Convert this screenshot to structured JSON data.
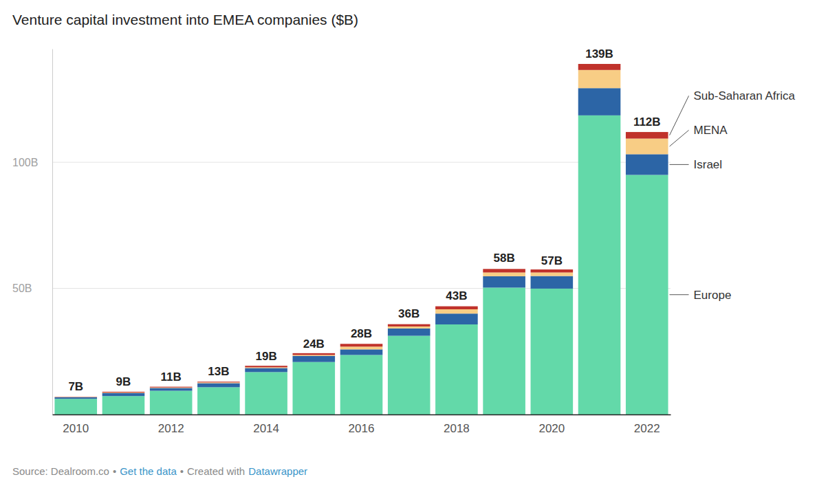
{
  "chart_data": {
    "type": "bar",
    "title": "Venture capital investment into EMEA companies ($B)",
    "categories": [
      "2010",
      null,
      "2012",
      null,
      "2014",
      null,
      "2016",
      null,
      "2018",
      null,
      "2020",
      null,
      "2022"
    ],
    "series": [
      {
        "name": "Europe",
        "color": "#63d9a9",
        "values": [
          6.2,
          7.3,
          9.4,
          10.8,
          16.8,
          20.8,
          23.6,
          31.2,
          35.7,
          50.3,
          49.9,
          118.6,
          95.0
        ]
      },
      {
        "name": "Israel",
        "color": "#2c65a6",
        "values": [
          0.6,
          1.2,
          1.1,
          1.6,
          1.6,
          2.4,
          2.2,
          2.9,
          4.3,
          4.5,
          5.0,
          10.8,
          8.2
        ]
      },
      {
        "name": "MENA",
        "color": "#f8cd85",
        "values": [
          0.1,
          0.2,
          0.2,
          0.3,
          0.3,
          0.4,
          1.1,
          0.8,
          1.7,
          1.5,
          1.4,
          7.2,
          6.2
        ]
      },
      {
        "name": "Sub-Saharan Africa",
        "color": "#c0322b",
        "values": [
          0.1,
          0.3,
          0.3,
          0.3,
          0.6,
          0.7,
          1.1,
          0.9,
          1.2,
          1.4,
          1.2,
          2.4,
          2.6
        ]
      }
    ],
    "totals": [
      7,
      9,
      11,
      13,
      19,
      24,
      28,
      36,
      43,
      58,
      57,
      139,
      112
    ],
    "total_labels": [
      "7B",
      "9B",
      "11B",
      "13B",
      "19B",
      "24B",
      "28B",
      "36B",
      "43B",
      "58B",
      "57B",
      "139B",
      "112B"
    ],
    "ylim": [
      0,
      145
    ],
    "yticks": [
      {
        "value": 50,
        "label": "50B"
      },
      {
        "value": 100,
        "label": "100B"
      }
    ],
    "grid": true,
    "stacked": true,
    "footer": [
      "Source: Dealroom.co",
      "•",
      "Get the data",
      "•",
      "Created with",
      "Datawrapper"
    ]
  }
}
